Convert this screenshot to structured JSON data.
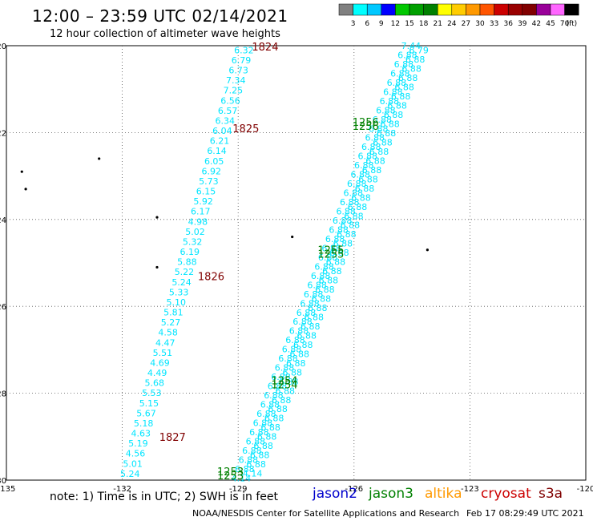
{
  "title": "12:00 – 23:59 UTC 02/14/2021",
  "subtitle": "12 hour collection of altimeter wave heights",
  "note": "note:  1) Time is in UTC;  2) SWH is in feet",
  "credit": "NOAA/NESDIS Center for Satellite Applications and Research",
  "generated": "Feb 17 08:29:49 UTC 2021",
  "satellites": [
    {
      "name": "jason2",
      "color": "#0000cc"
    },
    {
      "name": "jason3",
      "color": "#008000"
    },
    {
      "name": "altika",
      "color": "#ff9900"
    },
    {
      "name": "cryosat",
      "color": "#cc0000"
    },
    {
      "name": "s3a",
      "color": "#800000"
    }
  ],
  "colorbar": {
    "labels": [
      "3",
      "6",
      "9",
      "12",
      "15",
      "18",
      "21",
      "24",
      "27",
      "30",
      "33",
      "36",
      "39",
      "42",
      "45",
      "70",
      "(ft)"
    ],
    "colors": [
      "#808080",
      "#00ffff",
      "#00c8ff",
      "#0000ff",
      "#00c800",
      "#00a000",
      "#008000",
      "#ffff00",
      "#ffcc00",
      "#ff9900",
      "#ff5500",
      "#cc0000",
      "#990000",
      "#800000",
      "#990099",
      "#ff66ff",
      "#000000"
    ]
  },
  "chart_data": {
    "type": "scatter",
    "xlim": [
      -135,
      -120
    ],
    "ylim": [
      -30,
      -20
    ],
    "xticks": [
      "-135",
      "-132",
      "-129",
      "-126",
      "-123",
      "-120"
    ],
    "yticks": [
      "-20",
      "-22",
      "-24",
      "-26",
      "-28",
      "-30"
    ],
    "grid": true,
    "track_west": {
      "color": "#00e5ff",
      "labels": [
        "6.32",
        "6.79",
        "6.73",
        "7.34",
        "7.25",
        "6.56",
        "6.57",
        "6.34",
        "6.04",
        "6.21",
        "6.14",
        "6.05",
        "6.92",
        "5.73",
        "6.15",
        "5.92",
        "6.17",
        "4.98",
        "5.02",
        "5.32",
        "6.19",
        "5.88",
        "5.22",
        "5.24",
        "5.33",
        "5.10",
        "5.81",
        "5.27",
        "4.58",
        "4.47",
        "5.51",
        "4.69",
        "4.49",
        "5.68",
        "5.53",
        "5.15",
        "5.67",
        "5.18",
        "4.63",
        "5.19",
        "4.56",
        "5.01",
        "5.24"
      ],
      "times": [
        {
          "label": "1824",
          "lat": -20.02,
          "lon": -128.3
        },
        {
          "label": "1825",
          "lat": -21.9,
          "lon": -128.8
        },
        {
          "label": "1826",
          "lat": -25.3,
          "lon": -129.7
        },
        {
          "label": "1827",
          "lat": -29.0,
          "lon": -130.7
        }
      ]
    },
    "track_east": {
      "color": "#00e5ff",
      "top_labels": [
        "7.44",
        "6.79"
      ],
      "mid_labels": [
        "6.88"
      ],
      "bottom_labels": [
        "4.14"
      ],
      "times": [
        {
          "label": "1256",
          "lat": -21.75,
          "lon": -125.7
        },
        {
          "label": "1255",
          "lat": -24.7,
          "lon": -126.6
        },
        {
          "label": "1254",
          "lat": -27.7,
          "lon": -127.8
        },
        {
          "label": "1253",
          "lat": -29.8,
          "lon": -129.2
        }
      ]
    }
  }
}
